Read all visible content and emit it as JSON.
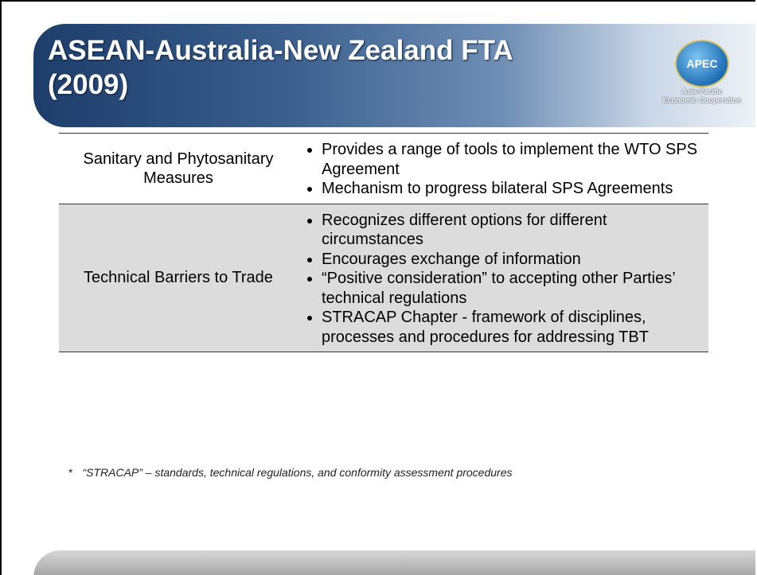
{
  "header": {
    "title_lines": [
      "ASEAN-Australia-New Zealand FTA",
      "(2009)"
    ],
    "logo": {
      "name": "APEC",
      "tagline_lines": [
        "Asia-Pacific",
        "Economic Cooperation"
      ]
    }
  },
  "table": {
    "rows": [
      {
        "label": "Sanitary and Phytosanitary Measures",
        "bullets": [
          "Provides a range of tools to implement the WTO SPS Agreement",
          "Mechanism to progress bilateral SPS Agreements"
        ]
      },
      {
        "label": "Technical Barriers to Trade",
        "bullets": [
          "Recognizes different options for different circumstances",
          "Encourages exchange of information",
          "“Positive consideration” to accepting other Parties’ technical regulations",
          "STRACAP Chapter - framework of disciplines, processes and procedures for addressing TBT"
        ]
      }
    ]
  },
  "footnote": {
    "marker": "*",
    "text": "“STRACAP” – standards, technical regulations, and conformity assessment procedures"
  }
}
